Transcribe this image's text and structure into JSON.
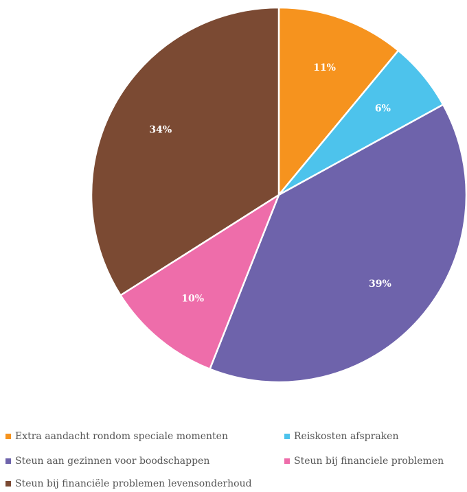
{
  "chart_data": {
    "type": "pie",
    "title": "",
    "start_angle_deg": 0,
    "direction": "clockwise",
    "slices": [
      {
        "label": "Extra aandacht rondom speciale momenten",
        "value": 11,
        "display": "11%",
        "color": "#F6931E"
      },
      {
        "label": "Reiskosten afspraken",
        "value": 6,
        "display": "6%",
        "color": "#4DC3EC"
      },
      {
        "label": "Steun aan gezinnen voor boodschappen",
        "value": 39,
        "display": "39%",
        "color": "#6E63AB"
      },
      {
        "label": "Steun bij financiele problemen",
        "value": 10,
        "display": "10%",
        "color": "#EE6DAA"
      },
      {
        "label": "Steun bij financiële problemen levensonderhoud",
        "value": 34,
        "display": "34%",
        "color": "#7B4A33"
      }
    ],
    "legend": {
      "position": "bottom",
      "items": [
        "Extra aandacht rondom speciale momenten",
        "Reiskosten afspraken",
        "Steun aan gezinnen voor boodschappen",
        "Steun bij financiele problemen",
        "Steun bij financiële problemen levensonderhoud"
      ]
    }
  }
}
